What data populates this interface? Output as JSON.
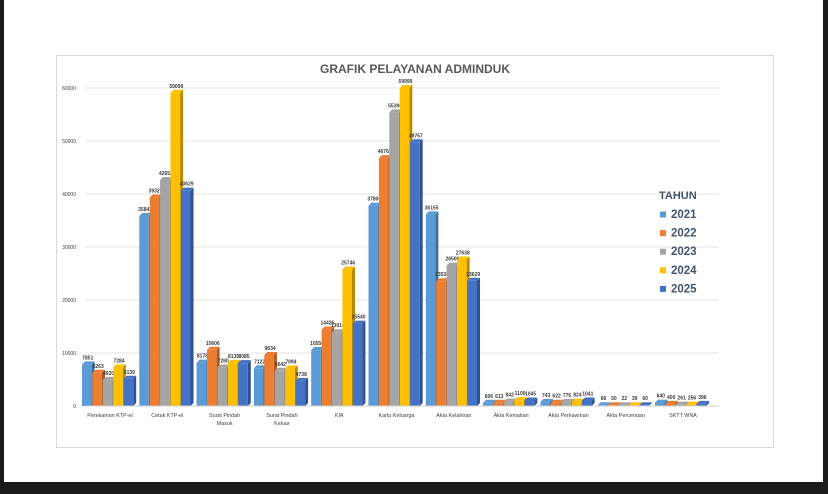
{
  "chart_data": {
    "type": "bar",
    "title": "GRAFIK PELAYANAN ADMINDUK",
    "xlabel": "",
    "ylabel": "",
    "ylim": [
      0,
      60000
    ],
    "yticks": [
      0,
      10000,
      20000,
      30000,
      40000,
      50000,
      60000
    ],
    "grid": true,
    "legend_title": "TAHUN",
    "legend_position": "right",
    "categories": [
      [
        "Perekaman KTP-el"
      ],
      [
        "Cetak KTP-el"
      ],
      [
        "Surat Pindah",
        "Masuk"
      ],
      [
        "Surat Pindah",
        "Keluar"
      ],
      [
        "KIA"
      ],
      [
        "Kartu Keluarga"
      ],
      [
        "Akta Kelahiran"
      ],
      [
        "Akta Kematian"
      ],
      [
        "Akta Perkawinan"
      ],
      [
        "Akta Perceraian"
      ],
      [
        "SKTT WNA"
      ]
    ],
    "series": [
      {
        "name": "2021",
        "color": "#5b9bd5",
        "values": [
          7851,
          35843,
          8178,
          7122,
          10556,
          37800,
          36155,
          606,
          743,
          66,
          640
        ]
      },
      {
        "name": "2022",
        "color": "#ed7d31",
        "values": [
          6263,
          39329,
          10606,
          9634,
          14426,
          46763,
          23538,
          613,
          622,
          50,
          400
        ]
      },
      {
        "name": "2023",
        "color": "#a5a5a5",
        "values": [
          4920,
          42652,
          7280,
          6642,
          13916,
          55390,
          26506,
          842,
          776,
          22,
          261
        ]
      },
      {
        "name": "2024",
        "color": "#ffc000",
        "values": [
          7284,
          59099,
          8135,
          7094,
          25746,
          59999,
          27638,
          1100,
          824,
          39,
          256
        ]
      },
      {
        "name": "2025",
        "color": "#4472c4",
        "values": [
          5139,
          40629,
          8085,
          4738,
          15540,
          49757,
          23629,
          1045,
          1041,
          60,
          396
        ]
      }
    ]
  }
}
